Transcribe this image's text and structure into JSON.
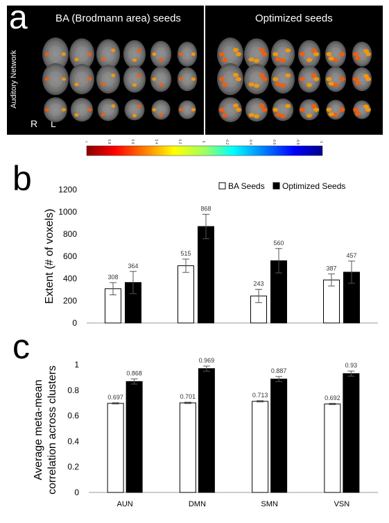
{
  "panel_a": {
    "letter": "a",
    "left_title": "BA (Brodmann area) seeds",
    "right_title": "Optimized seeds",
    "side_label": "Auditory Network",
    "label_r": "R",
    "label_l": "L",
    "colorbar_ticks": [
      "1",
      "0.8",
      "0.6",
      "0.4",
      "0.2",
      "0",
      "-0.2",
      "-0.4",
      "-0.6",
      "-0.8",
      "-1"
    ]
  },
  "panel_b": {
    "letter": "b"
  },
  "panel_c": {
    "letter": "c"
  },
  "chart_data": [
    {
      "type": "bar",
      "panel": "b",
      "categories": [
        "AUN",
        "DMN",
        "SMN",
        "VSN"
      ],
      "series": [
        {
          "name": "BA Seeds",
          "values": [
            308,
            515,
            243,
            387
          ],
          "errors": [
            55,
            60,
            60,
            55
          ],
          "fill": "#ffffff"
        },
        {
          "name": "Optimized Seeds",
          "values": [
            364,
            868,
            560,
            457
          ],
          "errors": [
            100,
            110,
            110,
            100
          ],
          "fill": "#000000"
        }
      ],
      "data_labels": [
        "308",
        "364",
        "515",
        "868",
        "243",
        "560",
        "387",
        "457"
      ],
      "ylabel": "Extent (# of voxels)",
      "ylim": [
        0,
        1200
      ],
      "yticks": [
        "0",
        "200",
        "400",
        "600",
        "800",
        "1000",
        "1200"
      ],
      "legend": "top-right"
    },
    {
      "type": "bar",
      "panel": "c",
      "categories": [
        "AUN",
        "DMN",
        "SMN",
        "VSN"
      ],
      "series": [
        {
          "values": [
            0.697,
            0.701,
            0.713,
            0.692
          ],
          "errors": [
            0.005,
            0.005,
            0.005,
            0.005
          ],
          "fill": "#ffffff"
        },
        {
          "values": [
            0.868,
            0.969,
            0.887,
            0.93
          ],
          "errors": [
            0.02,
            0.02,
            0.02,
            0.02
          ],
          "fill": "#000000"
        }
      ],
      "data_labels": [
        "0.697",
        "0.868",
        "0.701",
        "0.969",
        "0.713",
        "0.887",
        "0.692",
        "0.93"
      ],
      "ylabel_line1": "Average meta-mean",
      "ylabel_line2": "correlation across clusters",
      "ylim": [
        0,
        1
      ],
      "yticks": [
        "0",
        "0.2",
        "0.4",
        "0.6",
        "0.8",
        "1"
      ]
    }
  ]
}
